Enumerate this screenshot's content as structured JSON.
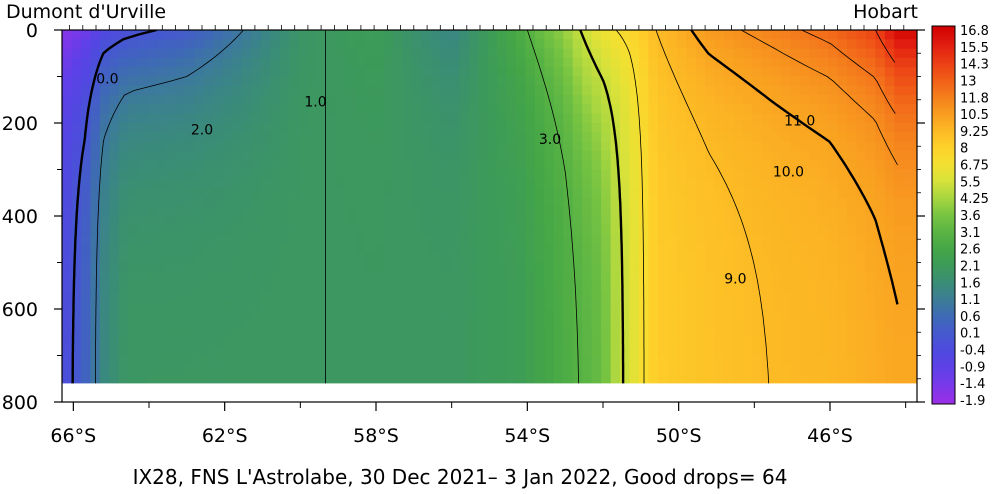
{
  "chart_data": {
    "type": "heatmap",
    "title": "IX28, FNS L'Astrolabe, 30 Dec 2021– 3 Jan 2022, Good drops= 64",
    "left_label": "Dumont d'Urville",
    "right_label": "Hobart",
    "xlabel": "",
    "ylabel": "",
    "x_axis": {
      "range": [
        66.3,
        43.7
      ],
      "direction": "decreasing latitude (°S) left to right",
      "ticks": [
        66,
        62,
        58,
        54,
        50,
        46
      ],
      "tick_labels": [
        "66°S",
        "62°S",
        "58°S",
        "54°S",
        "50°S",
        "46°S"
      ]
    },
    "y_axis": {
      "range": [
        0,
        800
      ],
      "inverted": true,
      "ticks": [
        0,
        200,
        400,
        600,
        800
      ],
      "tick_labels": [
        "0",
        "200",
        "400",
        "600",
        "800"
      ]
    },
    "data_depth_max": 760,
    "colorbar": {
      "levels": [
        "16.8",
        "15.5",
        "14.3",
        "13",
        "11.8",
        "10.5",
        "9.25",
        "8",
        "6.75",
        "5.5",
        "4.25",
        "3.6",
        "3.1",
        "2.6",
        "2.1",
        "1.6",
        "1.1",
        "0.6",
        "0.1",
        "-0.4",
        "-0.9",
        "-1.4",
        "-1.9"
      ],
      "colors": [
        "#d00000",
        "#e01a10",
        "#ea3a14",
        "#f05a18",
        "#f47a1c",
        "#f89a20",
        "#fcb624",
        "#fed02a",
        "#f4e030",
        "#d8e23a",
        "#a8d640",
        "#78c442",
        "#5ab444",
        "#44a646",
        "#3c9a5a",
        "#3a8c78",
        "#3c7c98",
        "#3f68b8",
        "#4658d0",
        "#5048e0",
        "#6040e8",
        "#7c38ea",
        "#9c2ee6"
      ]
    },
    "contour_labels": [
      {
        "text": "0.0",
        "lat": 65.1,
        "depth": 115
      },
      {
        "text": "1.0",
        "lat": 59.6,
        "depth": 165
      },
      {
        "text": "2.0",
        "lat": 62.6,
        "depth": 225
      },
      {
        "text": "3.0",
        "lat": 53.4,
        "depth": 245
      },
      {
        "text": "11.0",
        "lat": 46.8,
        "depth": 205
      },
      {
        "text": "10.0",
        "lat": 47.1,
        "depth": 315
      },
      {
        "text": "9.0",
        "lat": 48.5,
        "depth": 545
      }
    ],
    "section_profile": [
      {
        "lat": 66.2,
        "surface": -1.6,
        "deep": -0.2
      },
      {
        "lat": 65.7,
        "surface": -1.2,
        "deep": 0.4
      },
      {
        "lat": 65.2,
        "surface": -0.5,
        "deep": 1.5
      },
      {
        "lat": 64.6,
        "surface": -0.2,
        "deep": 2.0
      },
      {
        "lat": 63.0,
        "surface": 0.2,
        "deep": 2.0
      },
      {
        "lat": 61.5,
        "surface": 1.0,
        "deep": 2.0
      },
      {
        "lat": 60.0,
        "surface": 1.9,
        "deep": 2.0
      },
      {
        "lat": 58.0,
        "surface": 2.2,
        "deep": 2.0
      },
      {
        "lat": 56.0,
        "surface": 1.4,
        "deep": 2.0
      },
      {
        "lat": 54.2,
        "surface": 2.8,
        "deep": 2.2
      },
      {
        "lat": 53.0,
        "surface": 4.0,
        "deep": 2.8
      },
      {
        "lat": 52.0,
        "surface": 6.5,
        "deep": 3.3
      },
      {
        "lat": 51.3,
        "surface": 7.5,
        "deep": 5.5
      },
      {
        "lat": 50.6,
        "surface": 9.0,
        "deep": 8.2
      },
      {
        "lat": 49.2,
        "surface": 10.5,
        "deep": 8.6
      },
      {
        "lat": 47.5,
        "surface": 11.5,
        "deep": 9.0
      },
      {
        "lat": 46.0,
        "surface": 12.5,
        "deep": 9.2
      },
      {
        "lat": 44.8,
        "surface": 14.0,
        "deep": 9.6
      },
      {
        "lat": 44.2,
        "surface": 16.5,
        "deep": 9.8
      }
    ],
    "grid": false,
    "legend_placement": "right colorbar"
  }
}
